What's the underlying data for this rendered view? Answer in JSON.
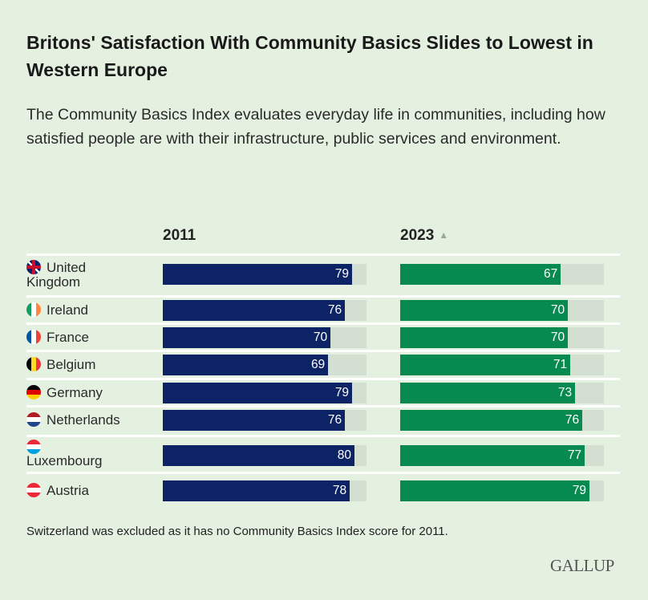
{
  "chart_data": {
    "type": "bar",
    "title": "Britons' Satisfaction With Community Basics Slides to Lowest in Western Europe",
    "subtitle": "The Community Basics Index evaluates everyday life in communities, including how satisfied people are with their infrastructure, public services and environment.",
    "categories": [
      "United Kingdom",
      "Ireland",
      "France",
      "Belgium",
      "Germany",
      "Netherlands",
      "Luxembourg",
      "Austria"
    ],
    "series": [
      {
        "name": "2011",
        "values": [
          79,
          76,
          70,
          69,
          79,
          76,
          80,
          78
        ],
        "color": "#0c2366"
      },
      {
        "name": "2023",
        "values": [
          67,
          70,
          70,
          71,
          73,
          76,
          77,
          79
        ],
        "color": "#078a4f"
      }
    ],
    "sort_indicator": "▲",
    "xlim": [
      0,
      85
    ],
    "note": "Switzerland was excluded as it has no Community Basics Index score for 2011.",
    "source_logo": "GALLUP"
  }
}
